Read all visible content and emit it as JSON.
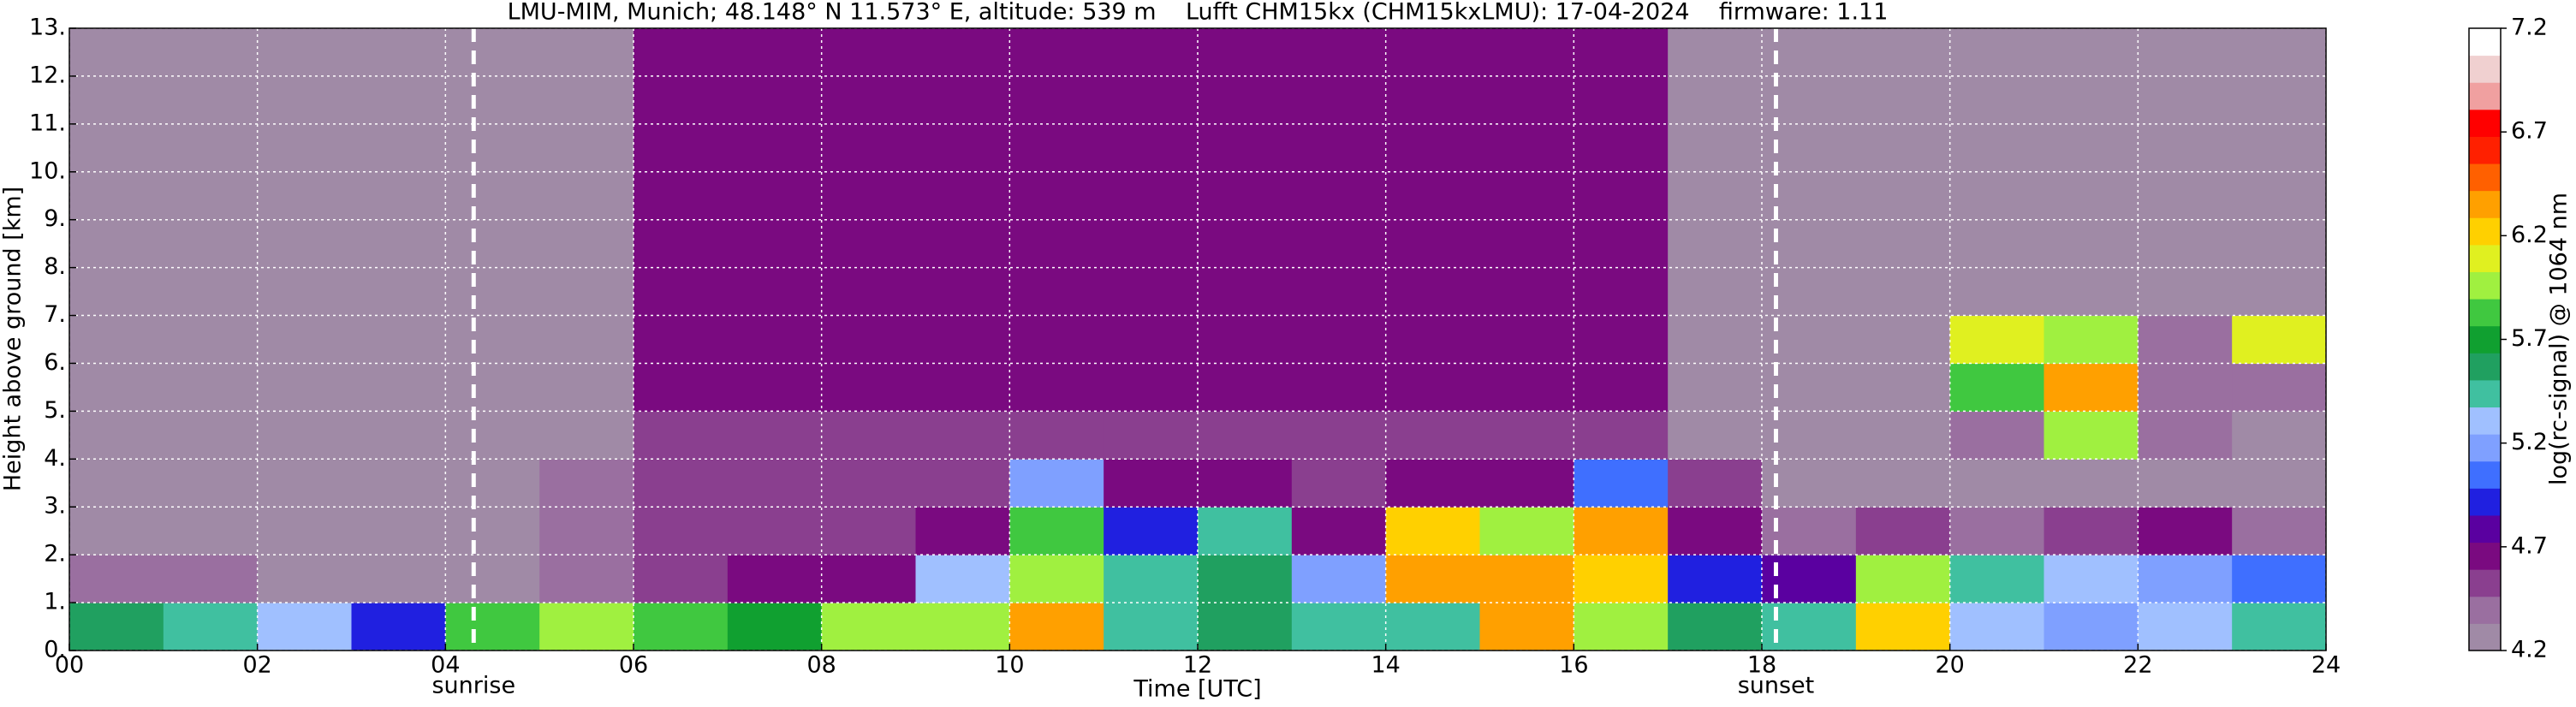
{
  "chart_data": {
    "type": "heatmap",
    "title": "LMU-MIM, Munich; 48.148° N 11.573° E, altitude: 539 m    Lufft CHM15kx (CHM15kxLMU): 17-04-2024    firmware: 1.11",
    "x_label": "Time [UTC]",
    "y_label": "Height above ground [km]",
    "colorbar_label": "log(rc-signal) @ 1064 nm",
    "x_bins": [
      0,
      1,
      2,
      3,
      4,
      5,
      6,
      7,
      8,
      9,
      10,
      11,
      12,
      13,
      14,
      15,
      16,
      17,
      18,
      19,
      20,
      21,
      22,
      23,
      24
    ],
    "y_bins": [
      0,
      1,
      2,
      3,
      4,
      5,
      6,
      7,
      8,
      9,
      10,
      11,
      12,
      13
    ],
    "z": [
      [
        5.6,
        5.4,
        5.3,
        4.9,
        5.8,
        5.9,
        5.8,
        5.7,
        5.9,
        6.0,
        6.3,
        5.5,
        5.6,
        5.4,
        5.5,
        6.4,
        6.0,
        5.6,
        5.4,
        6.2,
        5.3,
        5.2,
        5.3,
        5.4
      ],
      [
        4.4,
        4.4,
        4.3,
        4.3,
        4.3,
        4.4,
        4.5,
        4.6,
        4.7,
        5.3,
        6.0,
        5.5,
        5.6,
        5.2,
        6.3,
        6.4,
        6.2,
        4.9,
        4.8,
        6.0,
        5.4,
        5.3,
        5.2,
        5.0
      ],
      [
        4.3,
        4.3,
        4.3,
        4.3,
        4.3,
        4.4,
        4.5,
        4.5,
        4.5,
        4.6,
        5.8,
        4.9,
        5.4,
        4.6,
        6.2,
        5.9,
        6.3,
        4.6,
        4.4,
        4.5,
        4.4,
        4.5,
        4.6,
        4.4
      ],
      [
        4.3,
        4.3,
        4.3,
        4.3,
        4.3,
        4.4,
        4.5,
        4.5,
        4.5,
        4.5,
        5.2,
        4.6,
        4.7,
        4.5,
        4.7,
        4.6,
        5.0,
        4.5,
        4.3,
        4.3,
        4.3,
        4.3,
        4.3,
        4.3
      ],
      [
        4.3,
        4.3,
        4.3,
        4.3,
        4.3,
        4.3,
        4.5,
        4.5,
        4.5,
        4.5,
        4.5,
        4.5,
        4.5,
        4.5,
        4.5,
        4.5,
        4.5,
        4.3,
        4.3,
        4.3,
        4.4,
        5.9,
        4.4,
        4.3
      ],
      [
        4.3,
        4.3,
        4.3,
        4.3,
        4.3,
        4.3,
        4.6,
        4.6,
        4.6,
        4.6,
        4.6,
        4.6,
        4.6,
        4.6,
        4.6,
        4.6,
        4.6,
        4.3,
        4.3,
        4.3,
        5.8,
        6.3,
        4.4,
        4.4
      ],
      [
        4.3,
        4.3,
        4.3,
        4.3,
        4.3,
        4.3,
        4.6,
        4.6,
        4.6,
        4.6,
        4.6,
        4.6,
        4.6,
        4.6,
        4.6,
        4.6,
        4.6,
        4.3,
        4.3,
        4.3,
        6.1,
        5.9,
        4.4,
        6.1
      ],
      [
        4.3,
        4.3,
        4.3,
        4.3,
        4.3,
        4.3,
        4.6,
        4.6,
        4.6,
        4.6,
        4.6,
        4.6,
        4.6,
        4.6,
        4.6,
        4.6,
        4.6,
        4.3,
        4.3,
        4.3,
        4.3,
        4.3,
        4.3,
        4.3
      ],
      [
        4.3,
        4.3,
        4.3,
        4.3,
        4.3,
        4.3,
        4.6,
        4.6,
        4.6,
        4.6,
        4.6,
        4.6,
        4.6,
        4.6,
        4.6,
        4.6,
        4.6,
        4.3,
        4.3,
        4.3,
        4.3,
        4.3,
        4.3,
        4.3
      ],
      [
        4.3,
        4.3,
        4.3,
        4.3,
        4.3,
        4.3,
        4.6,
        4.6,
        4.6,
        4.6,
        4.6,
        4.6,
        4.6,
        4.6,
        4.6,
        4.6,
        4.6,
        4.3,
        4.3,
        4.3,
        4.3,
        4.3,
        4.3,
        4.3
      ],
      [
        4.3,
        4.3,
        4.3,
        4.3,
        4.3,
        4.3,
        4.6,
        4.6,
        4.6,
        4.6,
        4.6,
        4.6,
        4.6,
        4.6,
        4.6,
        4.6,
        4.6,
        4.3,
        4.3,
        4.3,
        4.3,
        4.3,
        4.3,
        4.3
      ],
      [
        4.3,
        4.3,
        4.3,
        4.3,
        4.3,
        4.3,
        4.6,
        4.6,
        4.6,
        4.6,
        4.6,
        4.6,
        4.6,
        4.6,
        4.6,
        4.6,
        4.6,
        4.3,
        4.3,
        4.3,
        4.3,
        4.3,
        4.3,
        4.3
      ],
      [
        4.3,
        4.3,
        4.3,
        4.3,
        4.3,
        4.3,
        4.6,
        4.6,
        4.6,
        4.6,
        4.6,
        4.6,
        4.6,
        4.6,
        4.6,
        4.6,
        4.6,
        4.3,
        4.3,
        4.3,
        4.3,
        4.3,
        4.3,
        4.3
      ]
    ],
    "xlim": [
      0,
      24
    ],
    "xticks": [
      {
        "value": 0,
        "label": "00"
      },
      {
        "value": 2,
        "label": "02"
      },
      {
        "value": 4,
        "label": "04"
      },
      {
        "value": 6,
        "label": "06"
      },
      {
        "value": 8,
        "label": "08"
      },
      {
        "value": 10,
        "label": "10"
      },
      {
        "value": 12,
        "label": "12"
      },
      {
        "value": 14,
        "label": "14"
      },
      {
        "value": 16,
        "label": "16"
      },
      {
        "value": 18,
        "label": "18"
      },
      {
        "value": 20,
        "label": "20"
      },
      {
        "value": 22,
        "label": "22"
      },
      {
        "value": 24,
        "label": "24"
      }
    ],
    "ylim": [
      0,
      13
    ],
    "yticks": [
      {
        "value": 0,
        "label": "0."
      },
      {
        "value": 1,
        "label": "1."
      },
      {
        "value": 2,
        "label": "2."
      },
      {
        "value": 3,
        "label": "3."
      },
      {
        "value": 4,
        "label": "4."
      },
      {
        "value": 5,
        "label": "5."
      },
      {
        "value": 6,
        "label": "6."
      },
      {
        "value": 7,
        "label": "7."
      },
      {
        "value": 8,
        "label": "8."
      },
      {
        "value": 9,
        "label": "9."
      },
      {
        "value": 10,
        "label": "10."
      },
      {
        "value": 11,
        "label": "11."
      },
      {
        "value": 12,
        "label": "12."
      },
      {
        "value": 13,
        "label": "13."
      }
    ],
    "clim": [
      4.2,
      7.2
    ],
    "cticks": [
      4.2,
      4.7,
      5.2,
      5.7,
      6.2,
      6.7,
      7.2
    ],
    "colormap": [
      "#a08aa6",
      "#9a6fa0",
      "#8a3f8f",
      "#7a0a80",
      "#5a00a0",
      "#2020e0",
      "#3f6fff",
      "#7fa0ff",
      "#a0c0ff",
      "#40c0a0",
      "#20a060",
      "#10a030",
      "#40c840",
      "#a0f040",
      "#e0f020",
      "#ffd000",
      "#ffa000",
      "#ff6000",
      "#ff2000",
      "#ff0000",
      "#f0a0a0",
      "#f0d0d0",
      "#ffffff"
    ],
    "grid": true,
    "annotations": [
      {
        "text": "sunrise",
        "x": 4.3
      },
      {
        "text": "sunset",
        "x": 18.15
      }
    ]
  }
}
